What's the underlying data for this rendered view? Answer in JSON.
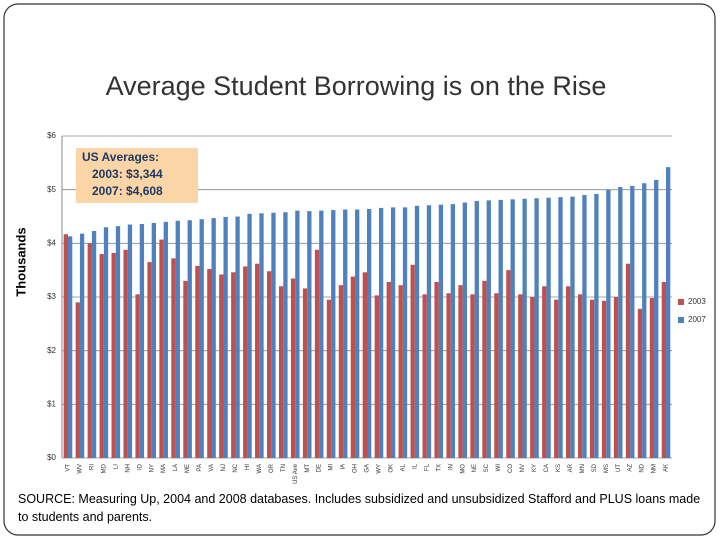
{
  "chart_data": {
    "type": "bar",
    "title": "Average Student Borrowing is on the Rise",
    "y_label": "Thousands",
    "annotation": [
      "US Averages:",
      "2003: $3,344",
      "2007: $4,608"
    ],
    "source": "SOURCE: Measuring Up, 2004 and 2008 databases. Includes subsidized and unsubsidized Stafford and PLUS loans made to students and parents.",
    "categories": [
      "VT",
      "WV",
      "RI",
      "MD",
      "LI",
      "NH",
      "ID",
      "NY",
      "MA",
      "LA",
      "ME",
      "PA",
      "VA",
      "NJ",
      "NC",
      "HI",
      "WA",
      "OR",
      "TN",
      "US Ave",
      "MT",
      "DE",
      "MI",
      "IA",
      "OH",
      "GA",
      "WY",
      "OK",
      "AL",
      "IL",
      "FL",
      "TX",
      "IN",
      "MO",
      "NE",
      "SC",
      "WI",
      "CO",
      "NV",
      "KY",
      "CA",
      "KS",
      "AR",
      "MN",
      "SD",
      "MS",
      "UT",
      "AZ",
      "ND",
      "NM",
      "AK"
    ],
    "series": [
      {
        "name": "2003",
        "color": "#c0504d",
        "values": [
          4.17,
          2.9,
          4.0,
          3.8,
          3.82,
          3.88,
          3.05,
          3.65,
          4.07,
          3.72,
          3.3,
          3.58,
          3.52,
          3.42,
          3.46,
          3.57,
          3.62,
          3.48,
          3.2,
          3.344,
          3.16,
          3.88,
          2.95,
          3.22,
          3.38,
          3.46,
          3.03,
          3.28,
          3.22,
          3.6,
          3.05,
          3.28,
          3.07,
          3.22,
          3.05,
          3.3,
          3.07,
          3.5,
          3.05,
          3.0,
          3.2,
          2.95,
          3.2,
          3.05,
          2.95,
          2.93,
          3.0,
          3.62,
          2.78,
          2.98,
          3.28
        ]
      },
      {
        "name": "2007",
        "color": "#4f81bd",
        "values": [
          4.13,
          4.18,
          4.23,
          4.3,
          4.32,
          4.35,
          4.36,
          4.38,
          4.4,
          4.42,
          4.43,
          4.45,
          4.47,
          4.49,
          4.5,
          4.55,
          4.56,
          4.57,
          4.58,
          4.608,
          4.6,
          4.61,
          4.62,
          4.63,
          4.63,
          4.64,
          4.66,
          4.67,
          4.67,
          4.7,
          4.71,
          4.72,
          4.73,
          4.76,
          4.79,
          4.8,
          4.81,
          4.82,
          4.83,
          4.84,
          4.85,
          4.86,
          4.87,
          4.9,
          4.92,
          5.0,
          5.05,
          5.07,
          5.12,
          5.18,
          5.42
        ]
      }
    ],
    "ylim": [
      0,
      6
    ],
    "yticks": [
      {
        "value": 0,
        "label": "$0"
      },
      {
        "value": 1,
        "label": "$1"
      },
      {
        "value": 2,
        "label": "$2"
      },
      {
        "value": 3,
        "label": "$3"
      },
      {
        "value": 4,
        "label": "$4"
      },
      {
        "value": 5,
        "label": "$5"
      },
      {
        "value": 6,
        "label": "$6"
      }
    ],
    "grid": true,
    "legend": "right"
  }
}
